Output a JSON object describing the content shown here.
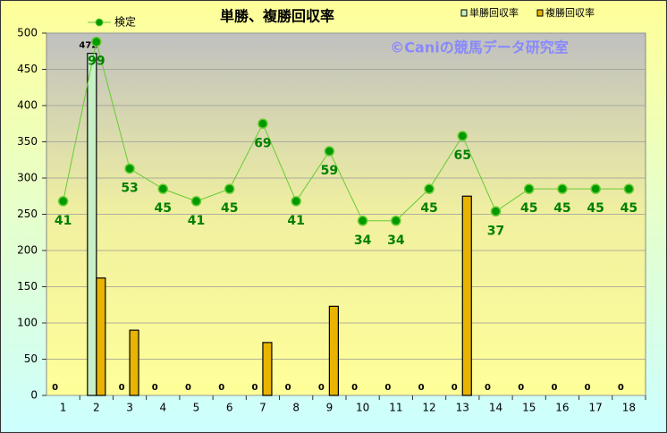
{
  "chart_data": {
    "type": "bar",
    "title": "単勝、複勝回収率",
    "watermark": "©Caniの競馬データ研究室",
    "categories": [
      "1",
      "2",
      "3",
      "4",
      "5",
      "6",
      "7",
      "8",
      "9",
      "10",
      "11",
      "12",
      "13",
      "14",
      "15",
      "16",
      "17",
      "18"
    ],
    "ylim": [
      0,
      500
    ],
    "yticks": [
      0,
      50,
      100,
      150,
      200,
      250,
      300,
      350,
      400,
      450,
      500
    ],
    "grid": true,
    "series": [
      {
        "name": "単勝回収率",
        "type": "bar",
        "color": "#c8f0c8",
        "values": [
          0,
          472,
          0,
          0,
          0,
          0,
          0,
          0,
          0,
          0,
          0,
          0,
          0,
          0,
          0,
          0,
          0,
          0
        ]
      },
      {
        "name": "複勝回収率",
        "type": "bar",
        "color": "#e8b400",
        "values": [
          0,
          162,
          90,
          0,
          0,
          0,
          73,
          0,
          123,
          0,
          0,
          0,
          275,
          0,
          0,
          0,
          0,
          0
        ]
      },
      {
        "name": "検定",
        "type": "line",
        "color": "#66cc33",
        "marker_color": "#009900",
        "values": [
          268,
          488,
          313,
          285,
          268,
          285,
          375,
          268,
          337,
          241,
          241,
          285,
          358,
          254,
          285,
          285,
          285,
          285
        ],
        "labels": [
          "41",
          "99",
          "53",
          "45",
          "41",
          "45",
          "69",
          "41",
          "59",
          "34",
          "34",
          "45",
          "65",
          "37",
          "45",
          "45",
          "45",
          "45"
        ]
      }
    ]
  }
}
